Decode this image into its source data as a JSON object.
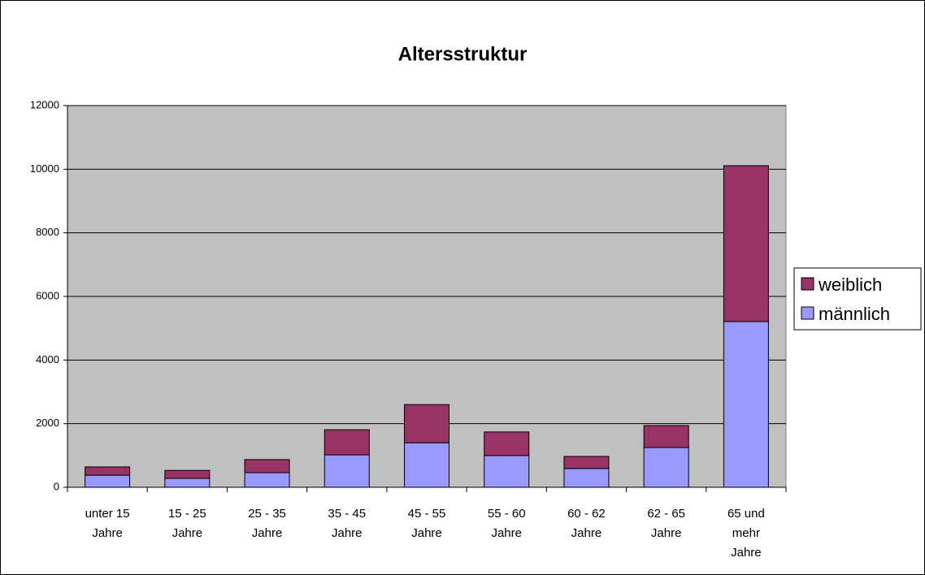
{
  "chart_data": {
    "type": "stacked_bar",
    "title": "Altersstruktur",
    "categories": [
      "unter 15\nJahre",
      "15 - 25\nJahre",
      "25 - 35\nJahre",
      "35 - 45\nJahre",
      "45 - 55\nJahre",
      "55 - 60\nJahre",
      "60 - 62\nJahre",
      "62 - 65\nJahre",
      "65 und\nmehr\nJahre"
    ],
    "series": [
      {
        "name": "männlich",
        "color": "#9999ff",
        "values": [
          380,
          280,
          460,
          1020,
          1400,
          1000,
          590,
          1250,
          5210
        ]
      },
      {
        "name": "weiblich",
        "color": "#993366",
        "values": [
          260,
          250,
          410,
          790,
          1200,
          740,
          380,
          690,
          4900
        ]
      }
    ],
    "ylim": [
      0,
      12000
    ],
    "yticks": [
      0,
      2000,
      4000,
      6000,
      8000,
      10000,
      12000
    ],
    "grid": true,
    "legend": "right"
  }
}
